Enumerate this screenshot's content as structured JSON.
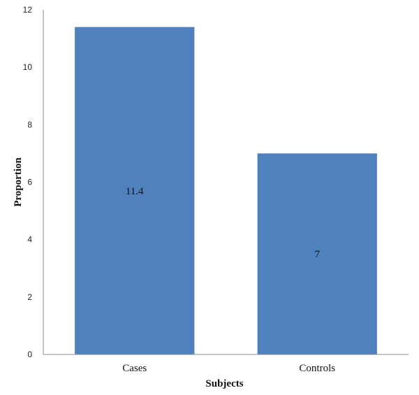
{
  "chart_data": {
    "type": "bar",
    "categories": [
      "Cases",
      "Controls"
    ],
    "values": [
      11.4,
      7
    ],
    "data_labels": [
      "11.4",
      "7"
    ],
    "xlabel": "Subjects",
    "ylabel": "Proportion",
    "ylim": [
      0,
      12
    ],
    "yticks": [
      0,
      2,
      4,
      6,
      8,
      10,
      12
    ],
    "grid": false,
    "legend": "none",
    "bar_color": "#4f81bd"
  }
}
